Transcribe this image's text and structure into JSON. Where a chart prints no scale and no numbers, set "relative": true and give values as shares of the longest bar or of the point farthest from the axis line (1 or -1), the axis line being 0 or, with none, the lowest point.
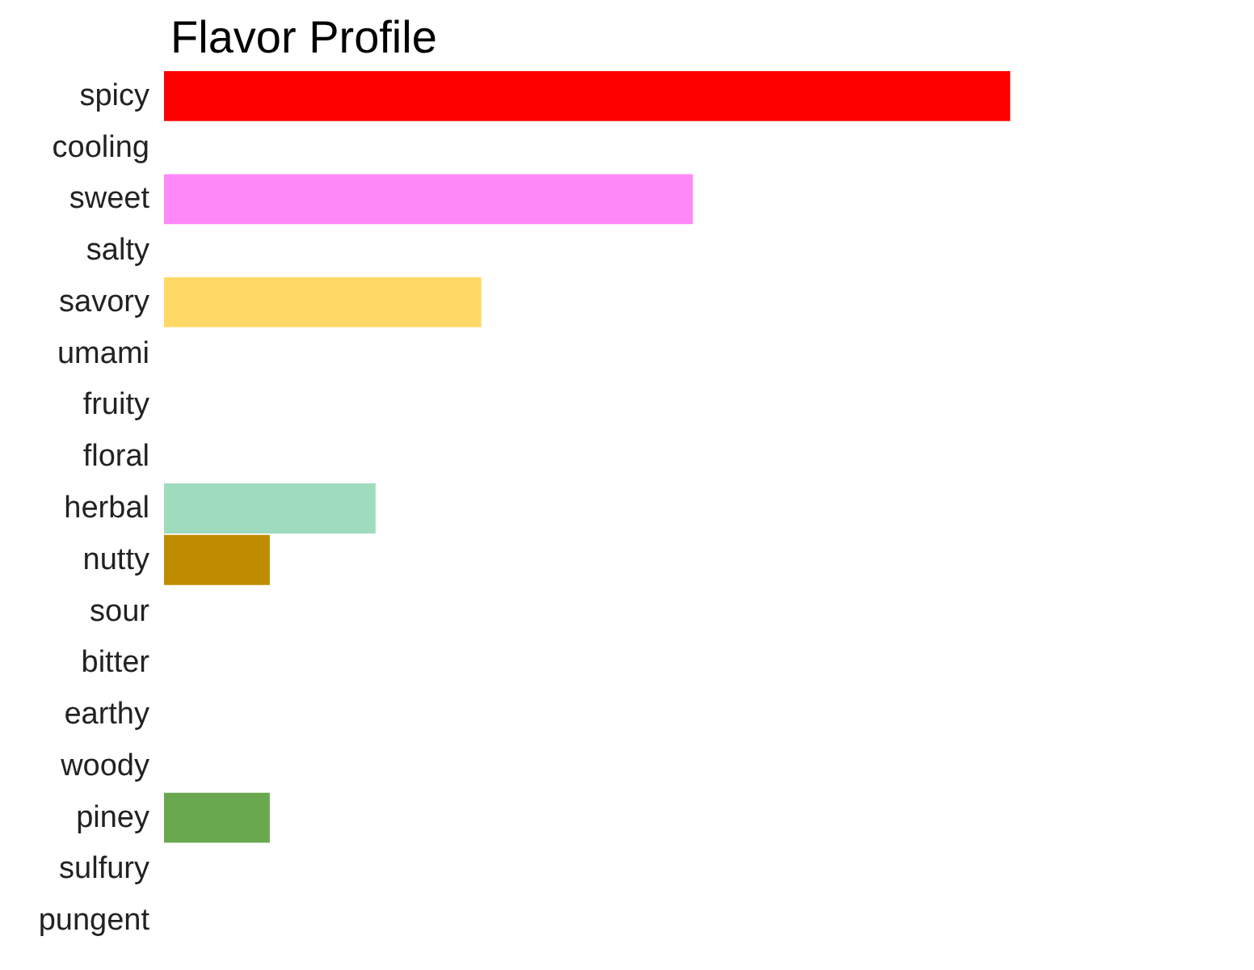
{
  "chart_data": {
    "type": "bar",
    "orientation": "horizontal",
    "relative": true,
    "title": "Flavor Profile",
    "categories": [
      "spicy",
      "cooling",
      "sweet",
      "salty",
      "savory",
      "umami",
      "fruity",
      "floral",
      "herbal",
      "nutty",
      "sour",
      "bitter",
      "earthy",
      "woody",
      "piney",
      "sulfury",
      "pungent"
    ],
    "values": [
      1,
      0,
      0.625,
      0,
      0.375,
      0,
      0,
      0,
      0.25,
      0.125,
      0,
      0,
      0,
      0,
      0.125,
      0,
      0
    ],
    "colors": [
      "#ff0000",
      null,
      "#ff88f8",
      null,
      "#ffd966",
      null,
      null,
      null,
      "#9fdbbd",
      "#bf8c00",
      null,
      null,
      null,
      null,
      "#6aa84f",
      null,
      null
    ],
    "grid": false
  }
}
